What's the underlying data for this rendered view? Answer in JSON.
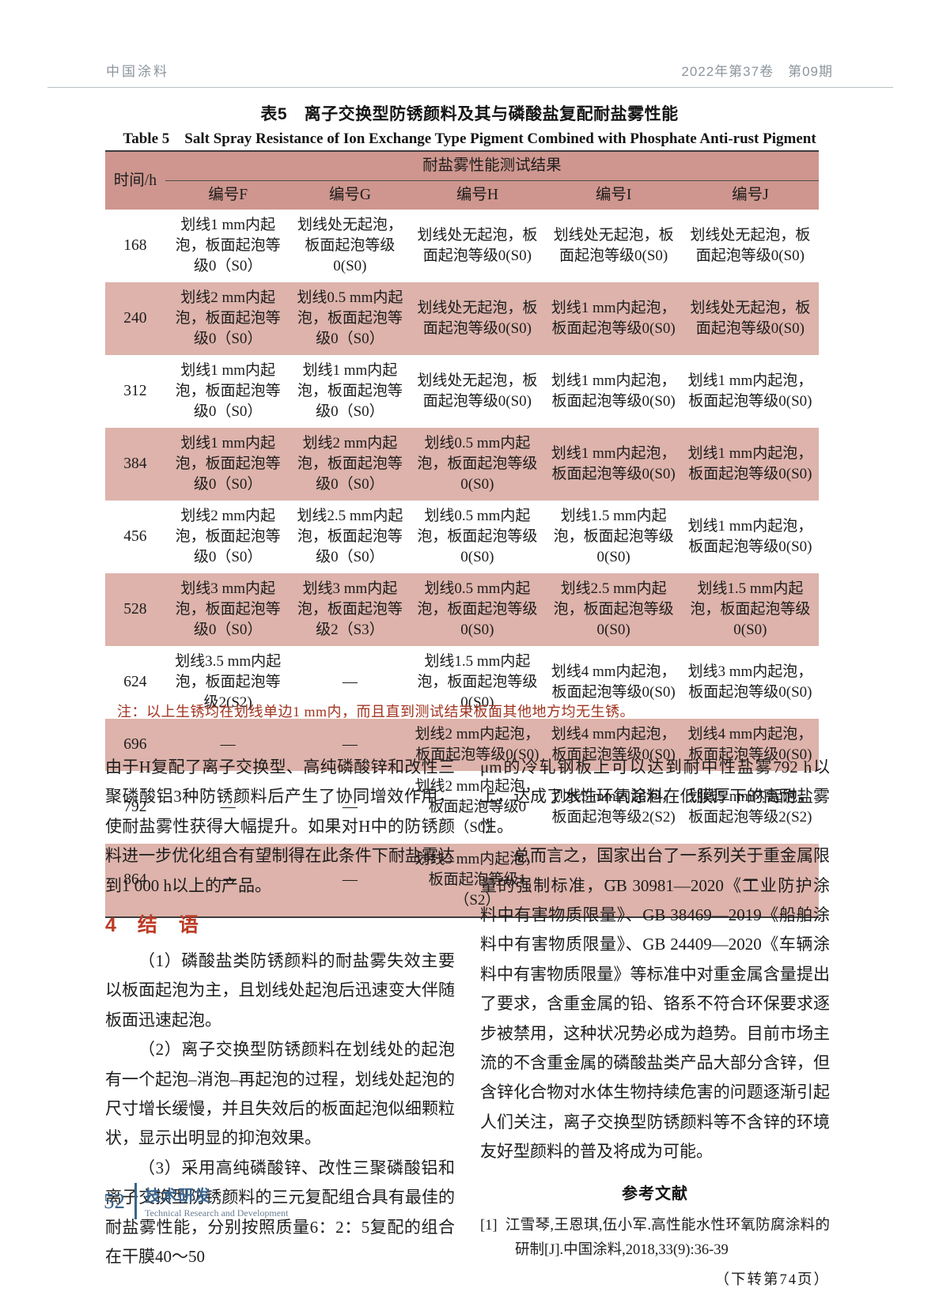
{
  "run_head": {
    "journal": "中国涂料",
    "issue": "2022年第37卷　第09期"
  },
  "table": {
    "title_zh": "表5　离子交换型防锈颜料及其与磷酸盐复配耐盐雾性能",
    "title_en": "Table 5　Salt Spray Resistance of Ion Exchange Type Pigment Combined with Phosphate Anti-rust Pigment",
    "time_label": "时间/h",
    "group_label": "耐盐雾性能测试结果",
    "columns": [
      "编号F",
      "编号G",
      "编号H",
      "编号I",
      "编号J"
    ],
    "rows": [
      {
        "time": "168",
        "cells": [
          "划线1 mm内起泡，板面起泡等级0（S0）",
          "划线处无起泡，板面起泡等级0(S0)",
          "划线处无起泡，板面起泡等级0(S0)",
          "划线处无起泡，板面起泡等级0(S0)",
          "划线处无起泡，板面起泡等级0(S0)"
        ]
      },
      {
        "time": "240",
        "cells": [
          "划线2 mm内起泡，板面起泡等级0（S0）",
          "划线0.5 mm内起泡，板面起泡等级0（S0）",
          "划线处无起泡，板面起泡等级0(S0)",
          "划线1 mm内起泡，板面起泡等级0(S0)",
          "划线处无起泡，板面起泡等级0(S0)"
        ]
      },
      {
        "time": "312",
        "cells": [
          "划线1 mm内起泡，板面起泡等级0（S0）",
          "划线1 mm内起泡，板面起泡等级0（S0）",
          "划线处无起泡，板面起泡等级0(S0)",
          "划线1 mm内起泡，板面起泡等级0(S0)",
          "划线1 mm内起泡，板面起泡等级0(S0)"
        ]
      },
      {
        "time": "384",
        "cells": [
          "划线1 mm内起泡，板面起泡等级0（S0）",
          "划线2 mm内起泡，板面起泡等级0（S0）",
          "划线0.5 mm内起泡，板面起泡等级0(S0)",
          "划线1 mm内起泡，板面起泡等级0(S0)",
          "划线1 mm内起泡，板面起泡等级0(S0)"
        ]
      },
      {
        "time": "456",
        "cells": [
          "划线2 mm内起泡，板面起泡等级0（S0）",
          "划线2.5 mm内起泡，板面起泡等级0（S0）",
          "划线0.5 mm内起泡，板面起泡等级0(S0)",
          "划线1.5 mm内起泡，板面起泡等级0(S0)",
          "划线1 mm内起泡，板面起泡等级0(S0)"
        ]
      },
      {
        "time": "528",
        "cells": [
          "划线3 mm内起泡，板面起泡等级0（S0）",
          "划线3 mm内起泡，板面起泡等级2（S3）",
          "划线0.5 mm内起泡，板面起泡等级0(S0)",
          "划线2.5 mm内起泡，板面起泡等级0(S0)",
          "划线1.5 mm内起泡，板面起泡等级0(S0)"
        ]
      },
      {
        "time": "624",
        "cells": [
          "划线3.5 mm内起泡，板面起泡等级2(S2)",
          "—",
          "划线1.5 mm内起泡，板面起泡等级0(S0)",
          "划线4 mm内起泡，板面起泡等级0(S0)",
          "划线3 mm内起泡，板面起泡等级0(S0)"
        ]
      },
      {
        "time": "696",
        "cells": [
          "—",
          "—",
          "划线2 mm内起泡，板面起泡等级0(S0)",
          "划线4 mm内起泡，板面起泡等级0(S0)",
          "划线4 mm内起泡，板面起泡等级0(S0)"
        ]
      },
      {
        "time": "792",
        "cells": [
          "—",
          "—",
          "划线2 mm内起泡，板面起泡等级0（S0）",
          "划线5 mm内起泡，板面起泡等级2(S2)",
          "划线5 mm内起泡，板面起泡等级2(S2)"
        ]
      },
      {
        "time": "864",
        "cells": [
          "—",
          "—",
          "划线3 mm内起泡，板面起泡等级1（S2）",
          "—",
          "—"
        ]
      }
    ],
    "note": "注：以上生锈均在划线单边1 mm内，而且直到测试结束板面其他地方均无生锈。"
  },
  "body": {
    "left": {
      "p1": "由于H复配了离子交换型、高纯磷酸锌和改性三聚磷酸铝3种防锈颜料后产生了协同增效作用，使耐盐雾性获得大幅提升。如果对H中的防锈颜料进一步优化组合有望制得在此条件下耐盐雾达到1 000 h以上的产品。",
      "heading": "4　结　语",
      "p2": "（1）磷酸盐类防锈颜料的耐盐雾失效主要以板面起泡为主，且划线处起泡后迅速变大伴随板面迅速起泡。",
      "p3": "（2）离子交换型防锈颜料在划线处的起泡有一个起泡–消泡–再起泡的过程，划线处起泡的尺寸增长缓慢，并且失效后的板面起泡似细颗粒状，显示出明显的抑泡效果。",
      "p4": "（3）采用高纯磷酸锌、改性三聚磷酸铝和离子交换型防锈颜料的三元复配组合具有最佳的耐盐雾性能，分别按照质量6：2：5复配的组合在干膜40～50"
    },
    "right": {
      "p1": "μm的冷轧钢板上可以达到耐中性盐雾792 h以上，达成了水性环氧涂料在低膜厚下的高耐盐雾性。",
      "p2": "总而言之，国家出台了一系列关于重金属限量的强制标准，GB 30981—2020《工业防护涂料中有害物质限量》、GB 38469—2019《船舶涂料中有害物质限量》、GB 24409—2020《车辆涂料中有害物质限量》等标准中对重金属含量提出了要求，含重金属的铅、铬系不符合环保要求逐步被禁用，这种状况势必成为趋势。目前市场主流的不含重金属的磷酸盐类产品大部分含锌，但含锌化合物对水体生物持续危害的问题逐渐引起人们关注，离子交换型防锈颜料等不含锌的环境友好型颜料的普及将成为可能。",
      "ref_heading": "参考文献",
      "reference_marker": "[1]",
      "reference_text": "江雪琴,王恩琪,伍小军.高性能水性环氧防腐涂料的研制[J].中国涂料,2018,33(9):36-39",
      "continued": "（下转第74页）"
    }
  },
  "footer": {
    "page_number": "52",
    "section_zh": "技术研发",
    "section_en": "Technical Research and Development"
  },
  "colors": {
    "table_header_pink": "#ce968e",
    "table_alt_row_pink": "#ddb3ab",
    "note_red": "#a2331f",
    "heading_red": "#bc3b25",
    "footer_blue": "#39648c",
    "run_head_grey": "#8d959d"
  }
}
